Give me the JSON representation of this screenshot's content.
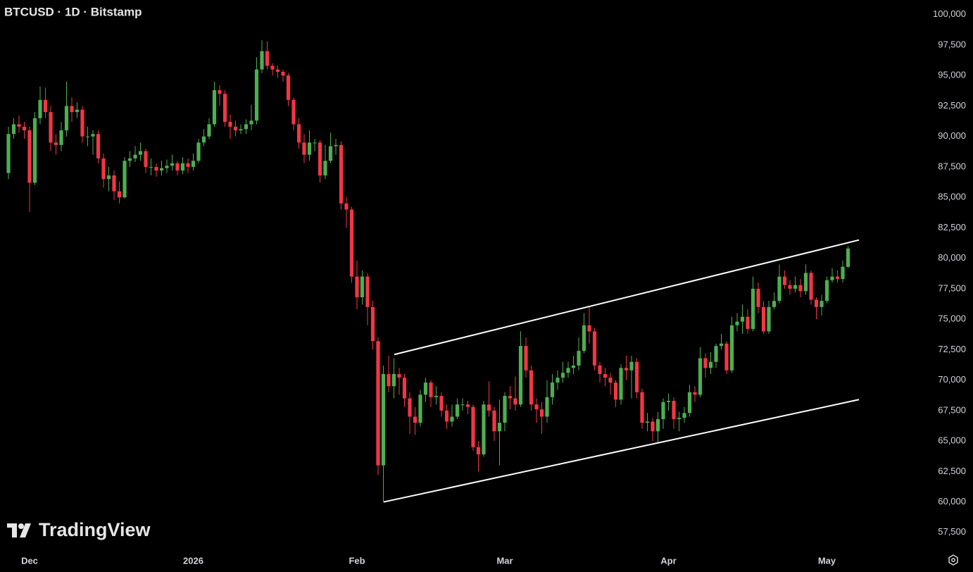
{
  "chart_data": {
    "type": "candlestick",
    "title": "BTCUSD · 1D · Bitstamp",
    "watermark": "TradingView",
    "up_color": "#4caf50",
    "down_color": "#f23645",
    "ylim": [
      56100,
      101200
    ],
    "yticks": [
      {
        "value": 57500,
        "label": "57,500"
      },
      {
        "value": 60000,
        "label": "60,000"
      },
      {
        "value": 62500,
        "label": "62,500"
      },
      {
        "value": 65000,
        "label": "65,000"
      },
      {
        "value": 67500,
        "label": "67,500"
      },
      {
        "value": 70000,
        "label": "70,000"
      },
      {
        "value": 72500,
        "label": "72,500"
      },
      {
        "value": 75000,
        "label": "75,000"
      },
      {
        "value": 77500,
        "label": "77,500"
      },
      {
        "value": 80000,
        "label": "80,000"
      },
      {
        "value": 82500,
        "label": "82,500"
      },
      {
        "value": 85000,
        "label": "85,000"
      },
      {
        "value": 87500,
        "label": "87,500"
      },
      {
        "value": 90000,
        "label": "90,000"
      },
      {
        "value": 92500,
        "label": "92,500"
      },
      {
        "value": 95000,
        "label": "95,000"
      },
      {
        "value": 97500,
        "label": "97,500"
      },
      {
        "value": 100000,
        "label": "100,000"
      }
    ],
    "categories": [
      null,
      null,
      null,
      null,
      "Dec",
      null,
      null,
      null,
      null,
      null,
      null,
      null,
      null,
      null,
      null,
      null,
      null,
      null,
      null,
      null,
      null,
      null,
      null,
      null,
      null,
      null,
      null,
      null,
      null,
      null,
      null,
      null,
      null,
      null,
      null,
      "2026",
      null,
      null,
      null,
      null,
      null,
      null,
      null,
      null,
      null,
      null,
      null,
      null,
      null,
      null,
      null,
      null,
      null,
      null,
      null,
      null,
      null,
      null,
      null,
      null,
      null,
      null,
      null,
      null,
      null,
      null,
      "Feb",
      null,
      null,
      null,
      null,
      null,
      null,
      null,
      null,
      null,
      null,
      null,
      null,
      null,
      null,
      null,
      null,
      null,
      null,
      null,
      null,
      null,
      null,
      null,
      null,
      null,
      null,
      null,
      "Mar",
      null,
      null,
      null,
      null,
      null,
      null,
      null,
      null,
      null,
      null,
      null,
      null,
      null,
      null,
      null,
      null,
      null,
      null,
      null,
      null,
      null,
      null,
      null,
      null,
      null,
      null,
      null,
      null,
      null,
      null,
      "Apr",
      null,
      null,
      null,
      null,
      null,
      null,
      null,
      null,
      null,
      null,
      null,
      null,
      null,
      null,
      null,
      null,
      null,
      null,
      null,
      null,
      null,
      null,
      null,
      null,
      null,
      null,
      null,
      null,
      null,
      "May",
      null,
      null,
      null,
      null
    ],
    "ohlc": [
      [
        87000,
        90800,
        86500,
        90200
      ],
      [
        90200,
        91500,
        89800,
        91000
      ],
      [
        91000,
        91700,
        90300,
        90800
      ],
      [
        90800,
        91200,
        89800,
        90500
      ],
      [
        90500,
        90800,
        83800,
        86200
      ],
      [
        86200,
        92000,
        86000,
        91500
      ],
      [
        91500,
        94100,
        91000,
        93000
      ],
      [
        93000,
        94000,
        91500,
        92000
      ],
      [
        92000,
        92500,
        88800,
        89500
      ],
      [
        89500,
        90200,
        88500,
        89300
      ],
      [
        89300,
        91200,
        88800,
        90500
      ],
      [
        90500,
        94500,
        90000,
        92500
      ],
      [
        92500,
        93200,
        91200,
        92000
      ],
      [
        92000,
        92800,
        91500,
        92200
      ],
      [
        92200,
        92500,
        89500,
        90000
      ],
      [
        90000,
        90800,
        89200,
        90000
      ],
      [
        90000,
        90500,
        88500,
        90200
      ],
      [
        90200,
        90500,
        87800,
        88200
      ],
      [
        88200,
        88600,
        85800,
        86500
      ],
      [
        86500,
        87500,
        85500,
        86800
      ],
      [
        86800,
        87200,
        84800,
        85500
      ],
      [
        85500,
        86300,
        84500,
        85000
      ],
      [
        85000,
        88300,
        84900,
        88000
      ],
      [
        88000,
        88800,
        87500,
        88200
      ],
      [
        88200,
        89200,
        87900,
        88500
      ],
      [
        88500,
        89500,
        88000,
        88800
      ],
      [
        88800,
        89000,
        87000,
        87500
      ],
      [
        87500,
        88200,
        86800,
        87500
      ],
      [
        87500,
        87800,
        86700,
        87200
      ],
      [
        87200,
        88000,
        86800,
        87400
      ],
      [
        87400,
        88100,
        87000,
        87600
      ],
      [
        87600,
        88500,
        87200,
        87800
      ],
      [
        87800,
        88000,
        86800,
        87200
      ],
      [
        87200,
        88300,
        86900,
        87800
      ],
      [
        87800,
        88200,
        87000,
        87500
      ],
      [
        87500,
        88600,
        87200,
        88000
      ],
      [
        88000,
        89800,
        87800,
        89500
      ],
      [
        89500,
        90600,
        89200,
        90000
      ],
      [
        90000,
        91500,
        89800,
        91000
      ],
      [
        91000,
        94500,
        90800,
        93800
      ],
      [
        93800,
        94200,
        92500,
        93500
      ],
      [
        93500,
        93800,
        90800,
        91200
      ],
      [
        91200,
        91800,
        89800,
        90800
      ],
      [
        90800,
        91300,
        90000,
        90500
      ],
      [
        90500,
        91000,
        90200,
        90600
      ],
      [
        90600,
        91400,
        90200,
        91000
      ],
      [
        91000,
        92600,
        90500,
        91300
      ],
      [
        91300,
        96500,
        91000,
        95500
      ],
      [
        95500,
        97900,
        95200,
        97000
      ],
      [
        97000,
        97800,
        95500,
        95800
      ],
      [
        95800,
        96000,
        95000,
        95500
      ],
      [
        95500,
        95800,
        94800,
        95300
      ],
      [
        95300,
        95500,
        94500,
        95000
      ],
      [
        95000,
        95200,
        92500,
        93000
      ],
      [
        93000,
        93200,
        90500,
        91000
      ],
      [
        91000,
        91500,
        89000,
        89500
      ],
      [
        89500,
        90200,
        87800,
        88500
      ],
      [
        88500,
        90500,
        88000,
        89500
      ],
      [
        89500,
        89800,
        88800,
        89500
      ],
      [
        89500,
        89700,
        86200,
        86800
      ],
      [
        86800,
        89300,
        86500,
        88000
      ],
      [
        88000,
        90300,
        87800,
        89200
      ],
      [
        89200,
        89800,
        88500,
        89300
      ],
      [
        89300,
        89600,
        84000,
        84500
      ],
      [
        84500,
        85000,
        82500,
        84000
      ],
      [
        84000,
        84200,
        78000,
        78500
      ],
      [
        78500,
        79800,
        75800,
        76800
      ],
      [
        76800,
        79000,
        76200,
        78500
      ],
      [
        78500,
        78800,
        74500,
        76000
      ],
      [
        76000,
        76500,
        72500,
        73200
      ],
      [
        73200,
        73500,
        62200,
        63000
      ],
      [
        63000,
        71200,
        60000,
        70500
      ],
      [
        70500,
        72000,
        69000,
        69500
      ],
      [
        69500,
        71800,
        68500,
        70500
      ],
      [
        70500,
        71000,
        68800,
        70200
      ],
      [
        70200,
        70500,
        67800,
        68500
      ],
      [
        68500,
        69000,
        65600,
        67000
      ],
      [
        67000,
        67800,
        65500,
        66500
      ],
      [
        66500,
        69200,
        66200,
        68800
      ],
      [
        68800,
        70200,
        68200,
        69800
      ],
      [
        69800,
        70000,
        67800,
        68600
      ],
      [
        68600,
        69500,
        68000,
        68700
      ],
      [
        68700,
        69000,
        67000,
        67500
      ],
      [
        67500,
        68000,
        66000,
        66600
      ],
      [
        66600,
        68000,
        66200,
        67000
      ],
      [
        67000,
        68500,
        66800,
        68000
      ],
      [
        68000,
        68500,
        67500,
        68000
      ],
      [
        68000,
        68300,
        67200,
        67800
      ],
      [
        67800,
        68000,
        64200,
        64500
      ],
      [
        64500,
        65000,
        62500,
        63900
      ],
      [
        63900,
        68300,
        63700,
        68000
      ],
      [
        68000,
        69900,
        67000,
        67500
      ],
      [
        67500,
        67800,
        65000,
        65800
      ],
      [
        65800,
        68400,
        63000,
        66500
      ],
      [
        66500,
        69000,
        65800,
        68700
      ],
      [
        68700,
        69500,
        67600,
        68500
      ],
      [
        68500,
        70300,
        67500,
        68000
      ],
      [
        68000,
        74000,
        67800,
        72800
      ],
      [
        72800,
        73500,
        70200,
        70800
      ],
      [
        70800,
        71200,
        67500,
        68000
      ],
      [
        68000,
        68500,
        66500,
        67600
      ],
      [
        67600,
        68200,
        65600,
        67000
      ],
      [
        67000,
        70000,
        66500,
        68600
      ],
      [
        68600,
        70500,
        68000,
        69800
      ],
      [
        69800,
        70800,
        69200,
        70200
      ],
      [
        70200,
        71500,
        69800,
        70600
      ],
      [
        70600,
        71500,
        70200,
        71000
      ],
      [
        71000,
        72000,
        70500,
        71200
      ],
      [
        71200,
        73500,
        70800,
        72400
      ],
      [
        72400,
        75500,
        72200,
        74500
      ],
      [
        74500,
        76000,
        73000,
        74000
      ],
      [
        74000,
        74300,
        70800,
        71200
      ],
      [
        71200,
        71500,
        69800,
        70500
      ],
      [
        70500,
        71000,
        69500,
        70200
      ],
      [
        70200,
        70600,
        68800,
        69800
      ],
      [
        69800,
        70000,
        67800,
        68400
      ],
      [
        68400,
        71300,
        68000,
        71000
      ],
      [
        71000,
        72000,
        70000,
        70800
      ],
      [
        70800,
        72000,
        68500,
        71500
      ],
      [
        71500,
        71800,
        68500,
        69000
      ],
      [
        69000,
        69300,
        66000,
        66500
      ],
      [
        66500,
        67300,
        65800,
        66600
      ],
      [
        66600,
        66900,
        65000,
        65800
      ],
      [
        65800,
        67400,
        64800,
        66800
      ],
      [
        66800,
        68500,
        66000,
        68200
      ],
      [
        68200,
        68900,
        67500,
        68300
      ],
      [
        68300,
        68600,
        66000,
        66800
      ],
      [
        66800,
        67400,
        65800,
        66900
      ],
      [
        66900,
        67800,
        66500,
        67300
      ],
      [
        67300,
        69600,
        67000,
        69000
      ],
      [
        69000,
        69500,
        68200,
        68800
      ],
      [
        68800,
        72700,
        68600,
        71800
      ],
      [
        71800,
        72200,
        70200,
        71000
      ],
      [
        71000,
        72300,
        70500,
        71500
      ],
      [
        71500,
        73000,
        71000,
        72800
      ],
      [
        72800,
        73800,
        72500,
        73000
      ],
      [
        73000,
        73200,
        70500,
        70800
      ],
      [
        70800,
        75200,
        70600,
        74500
      ],
      [
        74500,
        75500,
        74000,
        74800
      ],
      [
        74800,
        76200,
        73800,
        75200
      ],
      [
        75200,
        75800,
        73800,
        74200
      ],
      [
        74200,
        78500,
        74000,
        77500
      ],
      [
        77500,
        78000,
        75500,
        76000
      ],
      [
        76000,
        76500,
        73800,
        74000
      ],
      [
        74000,
        76500,
        73800,
        76000
      ],
      [
        76000,
        77200,
        75800,
        76500
      ],
      [
        76500,
        79500,
        76300,
        78500
      ],
      [
        78500,
        79000,
        77500,
        77800
      ],
      [
        77800,
        78200,
        77000,
        77500
      ],
      [
        77500,
        78500,
        77200,
        77800
      ],
      [
        77800,
        78300,
        76800,
        77300
      ],
      [
        77300,
        79500,
        77000,
        78800
      ],
      [
        78800,
        79000,
        76200,
        76600
      ],
      [
        76600,
        76800,
        75000,
        76000
      ],
      [
        76000,
        77000,
        75300,
        76500
      ],
      [
        76500,
        78500,
        76300,
        78200
      ],
      [
        78200,
        79200,
        78000,
        78500
      ],
      [
        78500,
        79000,
        78000,
        78300
      ],
      [
        78300,
        79800,
        78000,
        79300
      ],
      [
        79300,
        81000,
        79200,
        80800
      ]
    ],
    "trendlines": [
      {
        "values": [
          72100,
          81500
        ]
      },
      {
        "values": [
          60000,
          68400
        ]
      }
    ]
  }
}
